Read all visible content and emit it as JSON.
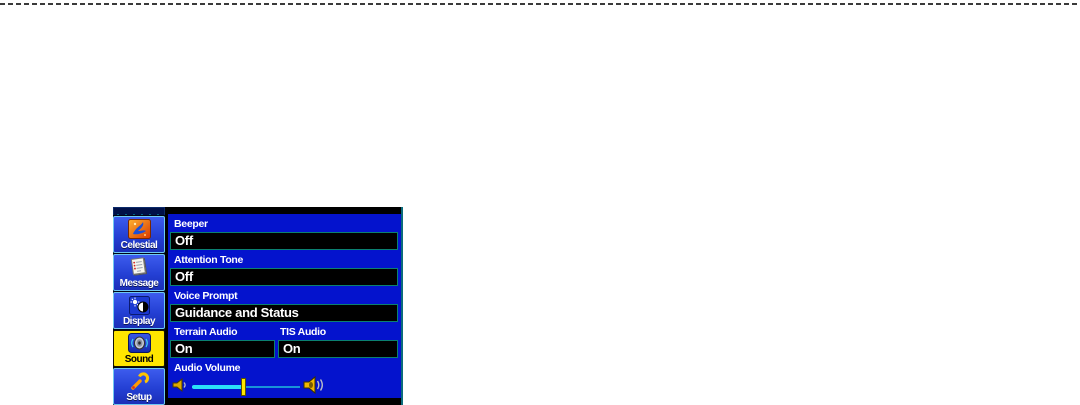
{
  "panel": {
    "sidebar": {
      "tabs": [
        {
          "label": "Celestial",
          "icon": "celestial-icon",
          "selected": false
        },
        {
          "label": "Message",
          "icon": "message-icon",
          "selected": false
        },
        {
          "label": "Display",
          "icon": "display-icon",
          "selected": false
        },
        {
          "label": "Sound",
          "icon": "sound-icon",
          "selected": true
        },
        {
          "label": "Setup",
          "icon": "setup-icon",
          "selected": false
        }
      ]
    },
    "fields": [
      {
        "label": "Beeper",
        "value": "Off"
      },
      {
        "label": "Attention Tone",
        "value": "Off"
      },
      {
        "label": "Voice Prompt",
        "value": "Guidance and Status"
      },
      {
        "label": "Terrain Audio",
        "value": "On"
      },
      {
        "label": "TIS Audio",
        "value": "On"
      }
    ],
    "volume": {
      "label": "Audio Volume",
      "position_pct": 47,
      "min_icon": "speaker-low-icon",
      "max_icon": "speaker-high-icon"
    },
    "colors": {
      "content_bg": "#0413cd",
      "tab_bg": "#2440d4",
      "tab_border": "#6fc8f2",
      "selected_tab_bg": "#ffe600",
      "field_bg": "#000000",
      "field_border": "#0b8070",
      "slider_track_filled": "#2be0f8",
      "slider_track_base": "#1893d8",
      "slider_thumb": "#ffe600",
      "wave_stroke": "#00c0c0"
    }
  }
}
